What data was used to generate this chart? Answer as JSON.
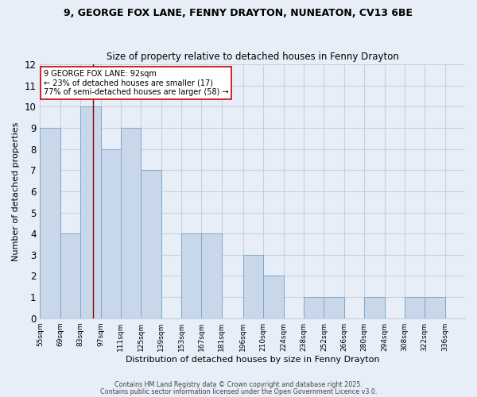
{
  "title1": "9, GEORGE FOX LANE, FENNY DRAYTON, NUNEATON, CV13 6BE",
  "title2": "Size of property relative to detached houses in Fenny Drayton",
  "xlabel": "Distribution of detached houses by size in Fenny Drayton",
  "ylabel": "Number of detached properties",
  "bin_edges": [
    55,
    69,
    83,
    97,
    111,
    125,
    139,
    153,
    167,
    181,
    196,
    210,
    224,
    238,
    252,
    266,
    280,
    294,
    308,
    322,
    336
  ],
  "bar_heights": [
    9,
    4,
    10,
    8,
    9,
    7,
    0,
    4,
    4,
    0,
    3,
    2,
    0,
    1,
    1,
    0,
    1,
    0,
    1,
    1
  ],
  "bar_color": "#c8d8ea",
  "bar_edge_color": "#7aaaca",
  "background_color": "#e8eef8",
  "grid_color": "#c8d0dc",
  "red_line_x": 92,
  "annotation_text": "9 GEORGE FOX LANE: 92sqm\n← 23% of detached houses are smaller (17)\n77% of semi-detached houses are larger (58) →",
  "annotation_box_color": "#ffffff",
  "annotation_box_edge_color": "#cc0000",
  "ylim": [
    0,
    12
  ],
  "yticks": [
    0,
    1,
    2,
    3,
    4,
    5,
    6,
    7,
    8,
    9,
    10,
    11,
    12
  ],
  "footnote1": "Contains HM Land Registry data © Crown copyright and database right 2025.",
  "footnote2": "Contains public sector information licensed under the Open Government Licence v3.0.",
  "tick_labels": [
    "55sqm",
    "69sqm",
    "83sqm",
    "97sqm",
    "111sqm",
    "125sqm",
    "139sqm",
    "153sqm",
    "167sqm",
    "181sqm",
    "196sqm",
    "210sqm",
    "224sqm",
    "238sqm",
    "252sqm",
    "266sqm",
    "280sqm",
    "294sqm",
    "308sqm",
    "322sqm",
    "336sqm"
  ]
}
